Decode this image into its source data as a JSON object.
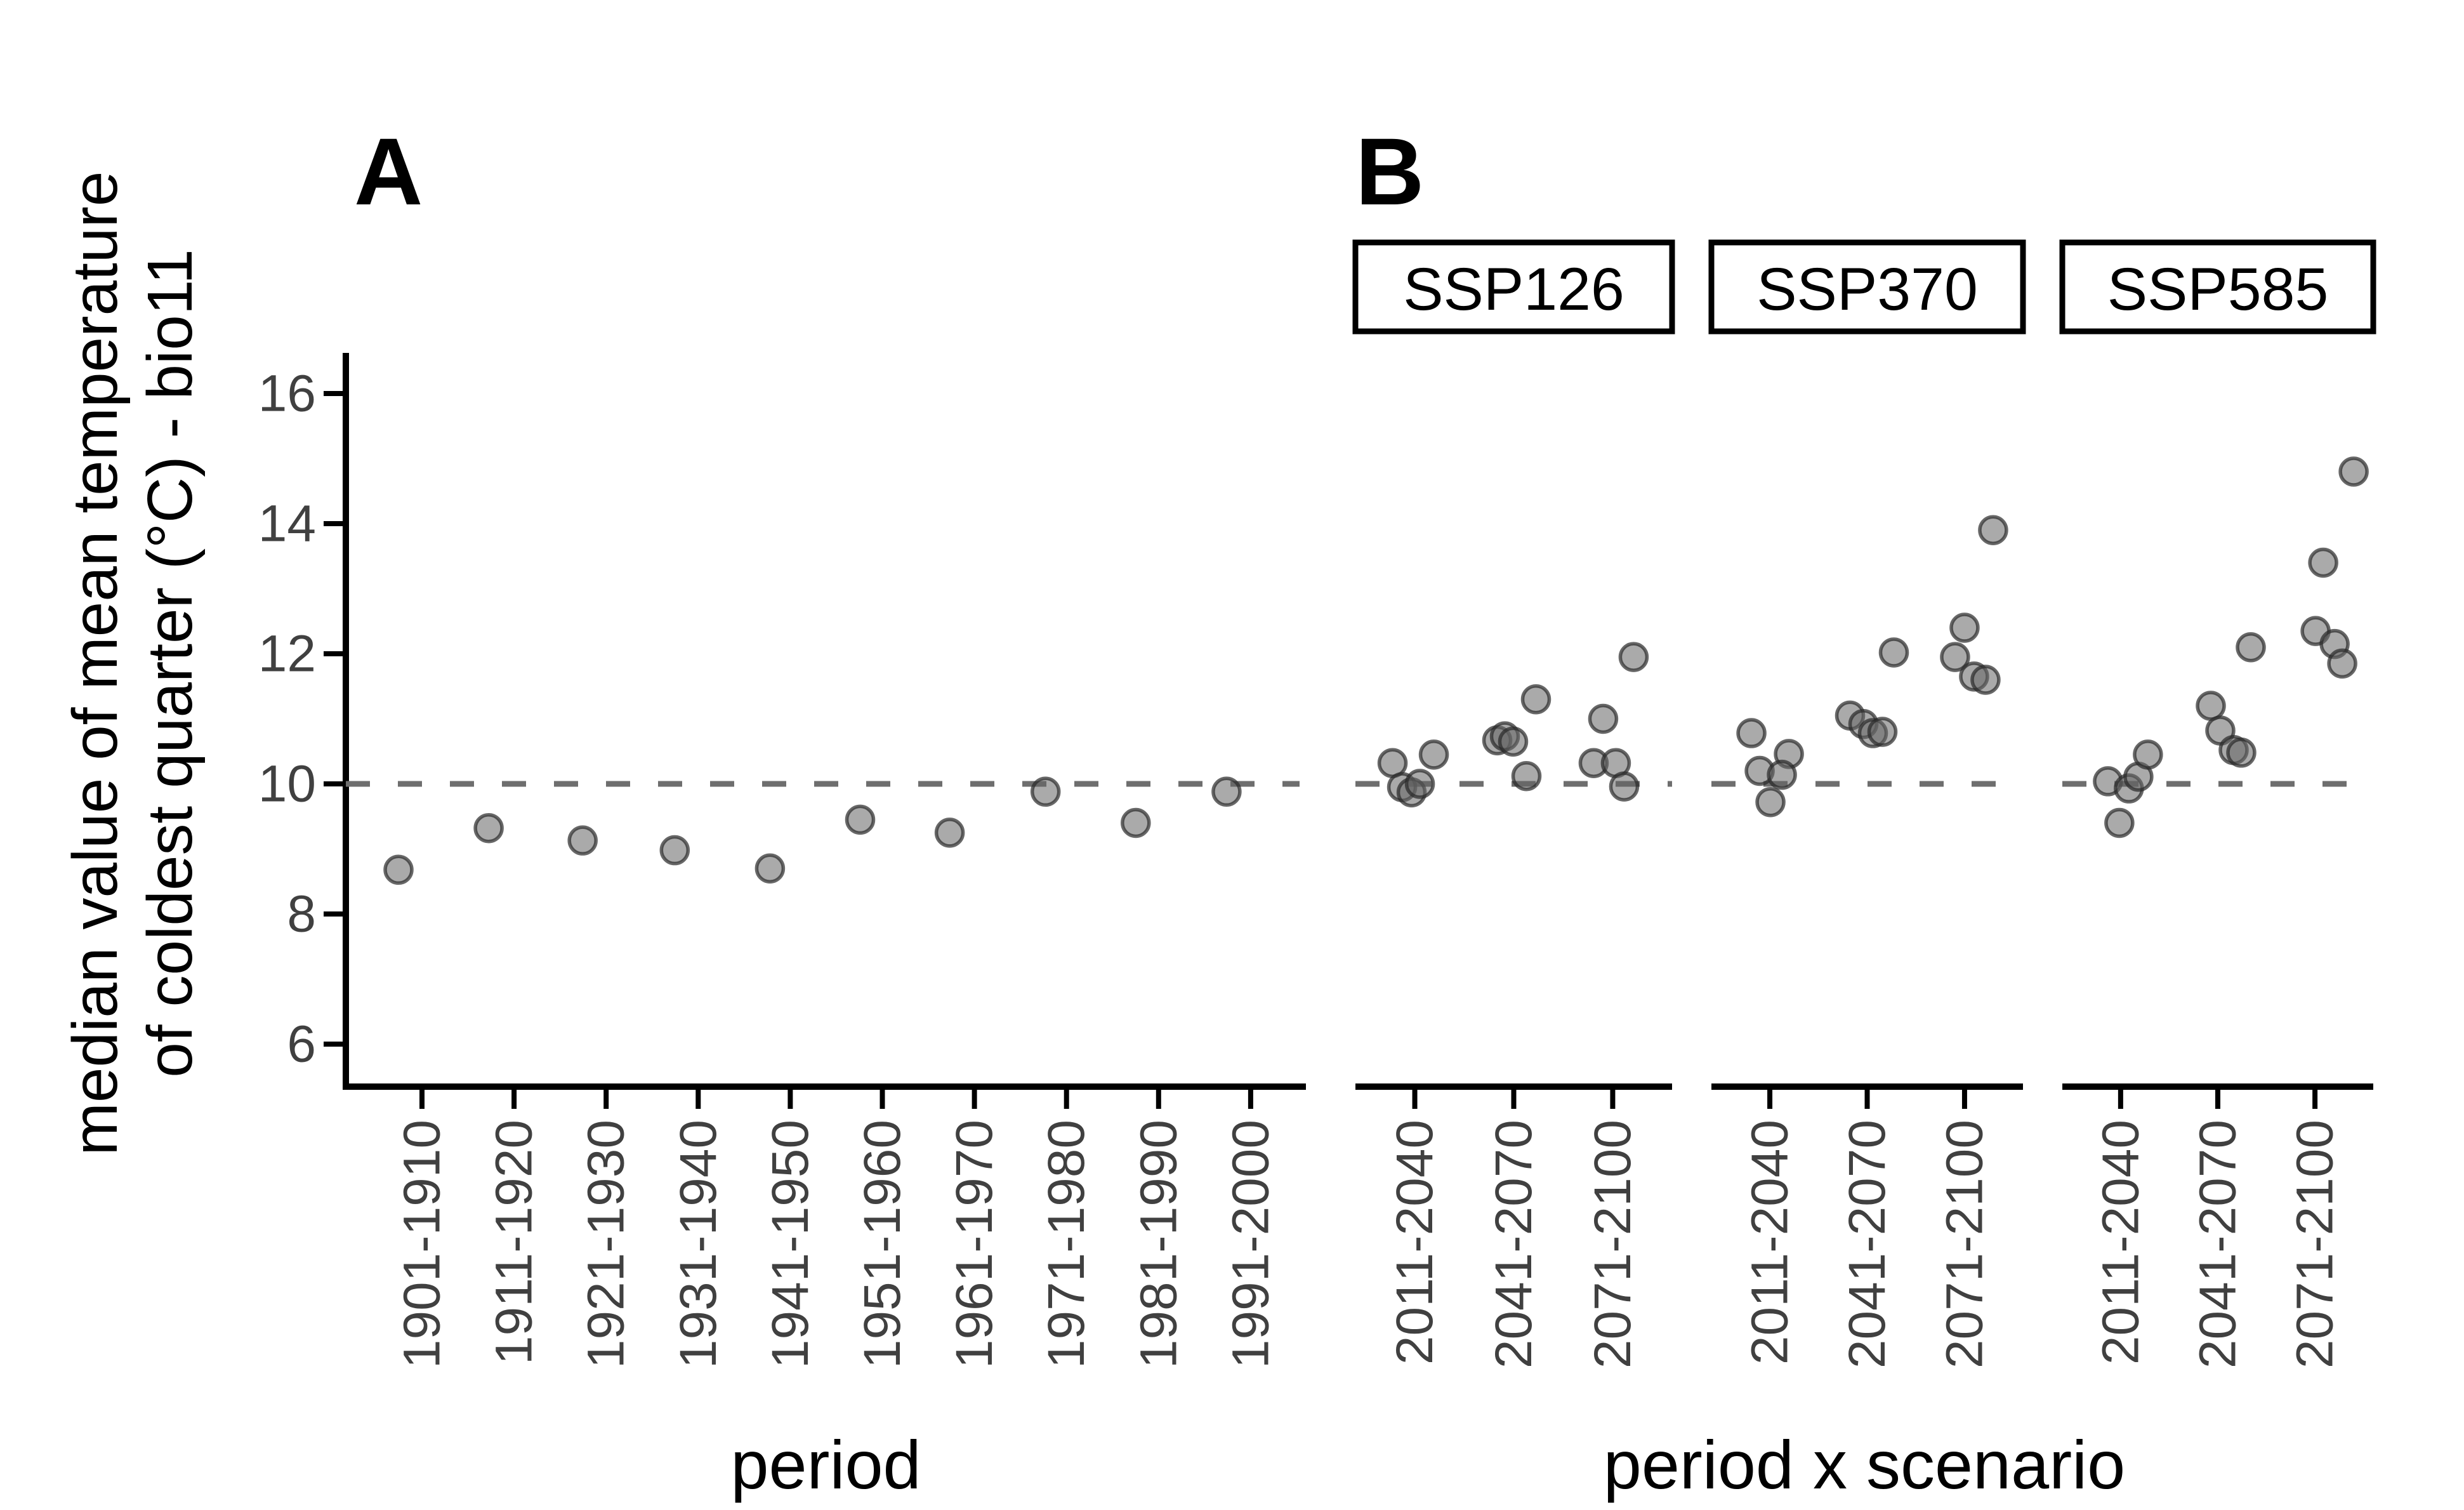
{
  "colors": {
    "background": "#ffffff",
    "axis_line": "#000000",
    "tick_mark": "#000000",
    "tick_label": "#404040",
    "axis_title": "#000000",
    "panel_letter": "#000000",
    "reference_line": "#6e6e6e",
    "point_fill": "#646464",
    "point_stroke": "#282828",
    "strip_background": "#ffffff",
    "strip_border": "#000000",
    "strip_text": "#000000"
  },
  "y_axis": {
    "title_lines": [
      "median value of mean temperature",
      "of coldest quarter (°C) - bio11"
    ],
    "ticks": [
      6,
      8,
      10,
      12,
      14,
      16
    ],
    "range": [
      5.4,
      16.6
    ],
    "reference_value": 10
  },
  "chart_data": [
    {
      "panel_label": "A",
      "type": "scatter",
      "xlabel": "period",
      "ylabel": "median value of mean temperature of coldest quarter (°C) - bio11",
      "yticks": [
        6,
        8,
        10,
        12,
        14,
        16
      ],
      "ref_line_y": 10,
      "grid": false,
      "categories": [
        "1901-1910",
        "1911-1920",
        "1921-1930",
        "1931-1940",
        "1941-1950",
        "1951-1960",
        "1961-1970",
        "1971-1980",
        "1981-1990",
        "1991-2000"
      ],
      "points": [
        {
          "category": "1901-1910",
          "value": 8.68,
          "dx": -37
        },
        {
          "category": "1911-1920",
          "value": 9.32,
          "dx": -40
        },
        {
          "category": "1921-1930",
          "value": 9.13,
          "dx": -37
        },
        {
          "category": "1931-1940",
          "value": 8.98,
          "dx": -37
        },
        {
          "category": "1941-1950",
          "value": 8.7,
          "dx": -32
        },
        {
          "category": "1951-1960",
          "value": 9.45,
          "dx": -35
        },
        {
          "category": "1961-1970",
          "value": 9.25,
          "dx": -39
        },
        {
          "category": "1971-1980",
          "value": 9.88,
          "dx": -33
        },
        {
          "category": "1981-1990",
          "value": 9.4,
          "dx": -36
        },
        {
          "category": "1991-2000",
          "value": 9.88,
          "dx": -38
        }
      ]
    },
    {
      "panel_label": "B",
      "type": "scatter",
      "xlabel": "period x scenario",
      "ylabel": "median value of mean temperature of coldest quarter (°C) - bio11",
      "yticks": [
        6,
        8,
        10,
        12,
        14,
        16
      ],
      "ref_line_y": 10,
      "grid": false,
      "facets": [
        {
          "label": "SSP126",
          "categories": [
            "2011-2040",
            "2041-2070",
            "2071-2100"
          ],
          "points": [
            {
              "category": "2011-2040",
              "value": 10.32,
              "dx": -35
            },
            {
              "category": "2011-2040",
              "value": 10.45,
              "dx": 30
            },
            {
              "category": "2011-2040",
              "value": 9.95,
              "dx": -20
            },
            {
              "category": "2011-2040",
              "value": 9.87,
              "dx": -5
            },
            {
              "category": "2011-2040",
              "value": 10.0,
              "dx": 8
            },
            {
              "category": "2041-2070",
              "value": 10.67,
              "dx": -26
            },
            {
              "category": "2041-2070",
              "value": 10.73,
              "dx": -14
            },
            {
              "category": "2041-2070",
              "value": 10.65,
              "dx": -1
            },
            {
              "category": "2041-2070",
              "value": 10.12,
              "dx": 20
            },
            {
              "category": "2041-2070",
              "value": 11.3,
              "dx": 35
            },
            {
              "category": "2071-2100",
              "value": 10.32,
              "dx": -30
            },
            {
              "category": "2071-2100",
              "value": 10.32,
              "dx": 5
            },
            {
              "category": "2071-2100",
              "value": 11.0,
              "dx": -15
            },
            {
              "category": "2071-2100",
              "value": 9.96,
              "dx": 18
            },
            {
              "category": "2071-2100",
              "value": 11.95,
              "dx": 33
            }
          ]
        },
        {
          "label": "SSP370",
          "categories": [
            "2011-2040",
            "2041-2070",
            "2071-2100"
          ],
          "points": [
            {
              "category": "2011-2040",
              "value": 10.78,
              "dx": -29
            },
            {
              "category": "2011-2040",
              "value": 10.46,
              "dx": 30
            },
            {
              "category": "2011-2040",
              "value": 10.2,
              "dx": -16
            },
            {
              "category": "2011-2040",
              "value": 10.14,
              "dx": 19
            },
            {
              "category": "2011-2040",
              "value": 9.72,
              "dx": 1
            },
            {
              "category": "2041-2070",
              "value": 11.05,
              "dx": -27
            },
            {
              "category": "2041-2070",
              "value": 10.92,
              "dx": -6
            },
            {
              "category": "2041-2070",
              "value": 10.78,
              "dx": 9
            },
            {
              "category": "2041-2070",
              "value": 10.8,
              "dx": 24
            },
            {
              "category": "2041-2070",
              "value": 12.02,
              "dx": 42
            },
            {
              "category": "2071-2100",
              "value": 12.4,
              "dx": 0
            },
            {
              "category": "2071-2100",
              "value": 11.95,
              "dx": -15
            },
            {
              "category": "2071-2100",
              "value": 11.65,
              "dx": 15
            },
            {
              "category": "2071-2100",
              "value": 11.6,
              "dx": 33
            },
            {
              "category": "2071-2100",
              "value": 13.9,
              "dx": 45
            }
          ]
        },
        {
          "label": "SSP585",
          "categories": [
            "2011-2040",
            "2041-2070",
            "2071-2100"
          ],
          "points": [
            {
              "category": "2011-2040",
              "value": 10.04,
              "dx": -20
            },
            {
              "category": "2011-2040",
              "value": 9.93,
              "dx": 13
            },
            {
              "category": "2011-2040",
              "value": 10.11,
              "dx": 28
            },
            {
              "category": "2011-2040",
              "value": 10.45,
              "dx": 43
            },
            {
              "category": "2011-2040",
              "value": 9.4,
              "dx": -2
            },
            {
              "category": "2041-2070",
              "value": 11.2,
              "dx": -11
            },
            {
              "category": "2041-2070",
              "value": 10.82,
              "dx": 4
            },
            {
              "category": "2041-2070",
              "value": 10.52,
              "dx": 25
            },
            {
              "category": "2041-2070",
              "value": 10.48,
              "dx": 37
            },
            {
              "category": "2041-2070",
              "value": 12.1,
              "dx": 52
            },
            {
              "category": "2071-2100",
              "value": 12.35,
              "dx": 1
            },
            {
              "category": "2071-2100",
              "value": 13.4,
              "dx": 13
            },
            {
              "category": "2071-2100",
              "value": 12.15,
              "dx": 31
            },
            {
              "category": "2071-2100",
              "value": 11.85,
              "dx": 43
            },
            {
              "category": "2071-2100",
              "value": 14.8,
              "dx": 61
            }
          ]
        }
      ]
    }
  ]
}
